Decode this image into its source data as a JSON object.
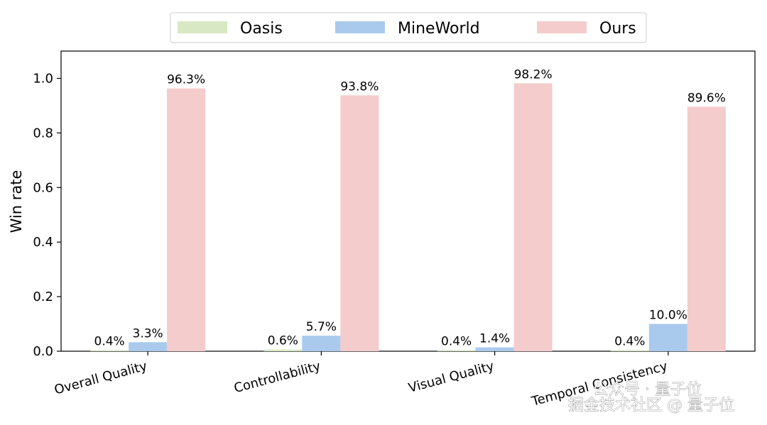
{
  "chart_data": {
    "type": "bar",
    "categories": [
      "Overall Quality",
      "Controllability",
      "Visual Quality",
      "Temporal Consistency"
    ],
    "series": [
      {
        "name": "Oasis",
        "color": "#d9e8c4",
        "values": [
          0.004,
          0.006,
          0.004,
          0.004
        ],
        "labels": [
          "0.4%",
          "0.6%",
          "0.4%",
          "0.4%"
        ]
      },
      {
        "name": "MineWorld",
        "color": "#a9caec",
        "values": [
          0.033,
          0.057,
          0.014,
          0.1
        ],
        "labels": [
          "3.3%",
          "5.7%",
          "1.4%",
          "10.0%"
        ]
      },
      {
        "name": "Ours",
        "color": "#f4cccc",
        "values": [
          0.963,
          0.938,
          0.982,
          0.896
        ],
        "labels": [
          "96.3%",
          "93.8%",
          "98.2%",
          "89.6%"
        ]
      }
    ],
    "ylabel": "Win rate",
    "xlabel": "",
    "ylim": [
      0,
      1.1
    ],
    "yticks": [
      "0.0",
      "0.2",
      "0.4",
      "0.6",
      "0.8",
      "1.0"
    ],
    "grid": false,
    "legend_position": "top-center"
  },
  "watermark": {
    "line1": "公众号 · 量子位",
    "line2": "掘金技术社区 @ 量子位"
  }
}
